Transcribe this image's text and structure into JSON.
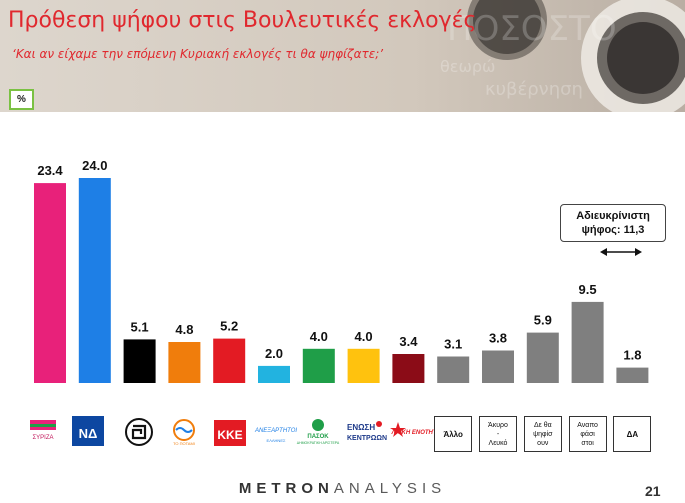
{
  "title": "Πρόθεση ψήφου στις Βουλευτικές εκλογές",
  "subtitle": "‘Και αν είχαμε την επόμενη Κυριακή εκλογές τι θα ψηφίζατε;’",
  "unit_label": "%",
  "unaccounted": {
    "line1": "Αδιευκρίνιστη",
    "line2": "ψήφος: 11,3"
  },
  "footer": {
    "logo_part1": "METRON",
    "logo_part2": "ANALYSIS",
    "page_number": "21"
  },
  "logos": {
    "syriza": "ΣΥΡΙΖΑ",
    "nd": "ΝΔ",
    "ka": "ΤΟ ΠΟΤΑΜΙ",
    "anel": "ΑΝΕΞΑΡΤΗΤΟΙ",
    "anel_sub": "ΕΛΛΗΝΕΣ",
    "pasok": "ΠΑΣΟΚ",
    "pasok_sub": "ΔΗΜΟΚΡΑΤΙΚΗ ΑΡΙΣΤΕΡΑ",
    "enosi1": "ΕΝΩΣΗ",
    "enosi2": "ΚΕΝΤΡΩΩΝ",
    "laiki": "ΛΑΪΚΗ ΕΝΟΤΗΤΑ",
    "kke": "ΚΚΕ"
  },
  "chart_data": {
    "type": "bar",
    "title": "Πρόθεση ψήφου στις Βουλευτικές εκλογές",
    "subtitle": "‘Και αν είχαμε την επόμενη Κυριακή εκλογές τι θα ψηφίζατε;’",
    "ylim": [
      0,
      25
    ],
    "categories": [
      "ΣΥΡΙΖΑ",
      "ΝΔ",
      "Χρυσή Αυγή",
      "Το Ποτάμι",
      "ΚΚΕ",
      "ΑΝΕΛ",
      "ΠΑΣΟΚ - ΔΗΜΑΡ",
      "Ένωση Κεντρώων",
      "Λαϊκή Ενότητα",
      "Άλλο",
      "Άκυρο - Λευκό",
      "Δε θα ψηφίσουν",
      "Αναποφάσιστοι",
      "ΔΑ"
    ],
    "values": [
      23.4,
      24.0,
      5.1,
      4.8,
      5.2,
      2.0,
      4.0,
      4.0,
      3.4,
      3.1,
      3.8,
      5.9,
      9.5,
      1.8
    ],
    "labels": [
      "23.4",
      "24.0",
      "5.1",
      "4.8",
      "5.2",
      "2.0",
      "4.0",
      "4.0",
      "3.4",
      "3.1",
      "3.8",
      "5.9",
      "9.5",
      "1.8"
    ],
    "colors": [
      "#e8217a",
      "#1e7fe6",
      "#000000",
      "#f07d0c",
      "#e31b23",
      "#22b3e0",
      "#1f9e48",
      "#ffc20e",
      "#8b0c17",
      "#7f7f7f",
      "#7f7f7f",
      "#7f7f7f",
      "#7f7f7f",
      "#7f7f7f"
    ],
    "text_boxes": [
      "Άλλο",
      "Άκυρο - Λευκό",
      "Δε θα ψηφίσουν",
      "Αναποφάσιστοι",
      "ΔΑ"
    ],
    "text_box_lines": [
      [
        "Άλλο"
      ],
      [
        "Άκυρο",
        "-",
        "Λευκό"
      ],
      [
        "Δε θα",
        "ψηφίσ",
        "ουν"
      ],
      [
        "Αναπο",
        "φάσι",
        "στοι"
      ],
      [
        "ΔΑ"
      ]
    ],
    "grid": false,
    "legend": "none"
  }
}
